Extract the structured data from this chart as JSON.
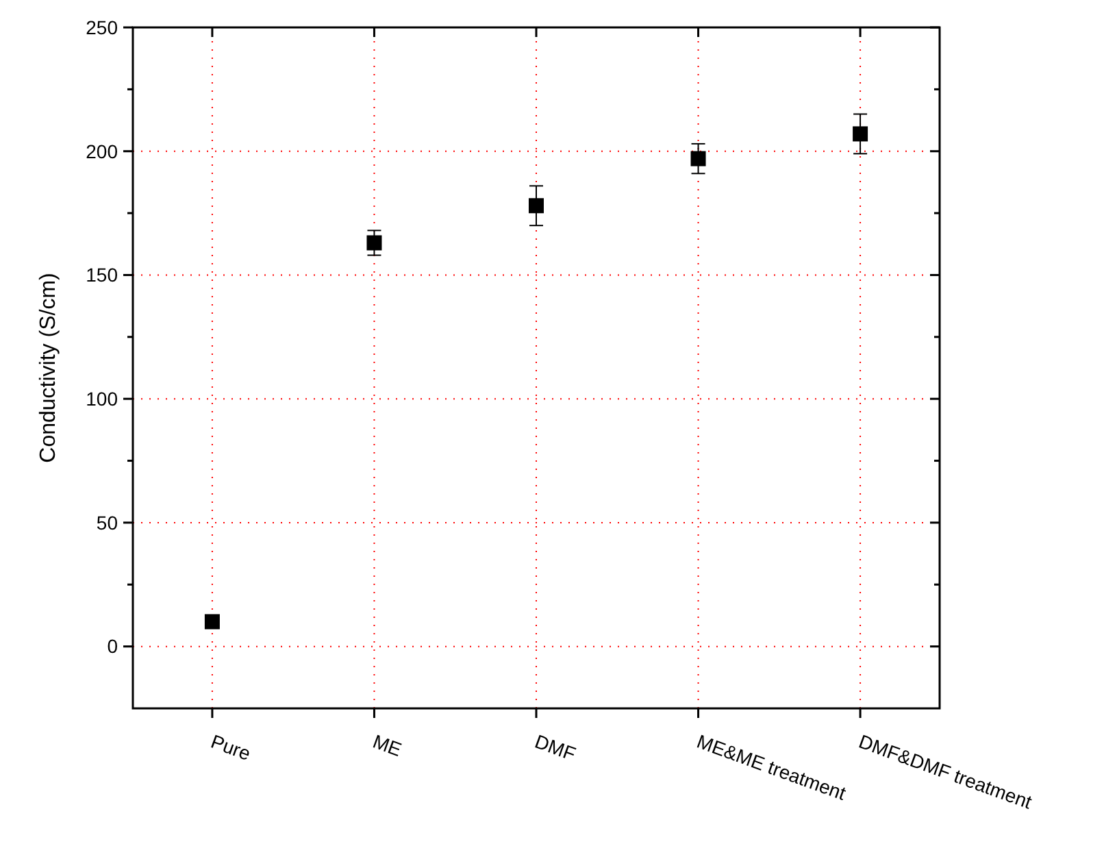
{
  "chart_data": {
    "type": "scatter",
    "ylabel": "Conductivity (S/cm)",
    "categories": [
      "Pure",
      "ME",
      "DMF",
      "ME&ME treatment",
      "DMF&DMF treatment"
    ],
    "series": [
      {
        "color": "#000000",
        "values": [
          10,
          163,
          178,
          197,
          207
        ],
        "errors": [
          null,
          5,
          8,
          6,
          8
        ]
      }
    ],
    "marker": "square",
    "ylim": [
      -25,
      250
    ],
    "yticks": [
      0,
      {
        "value": 25,
        "label": null
      },
      50,
      {
        "value": 75,
        "label": null
      },
      100,
      {
        "value": 125,
        "label": null
      },
      150,
      {
        "value": 175,
        "label": null
      },
      200,
      {
        "value": 225,
        "label": null
      },
      250
    ],
    "grid": true
  }
}
